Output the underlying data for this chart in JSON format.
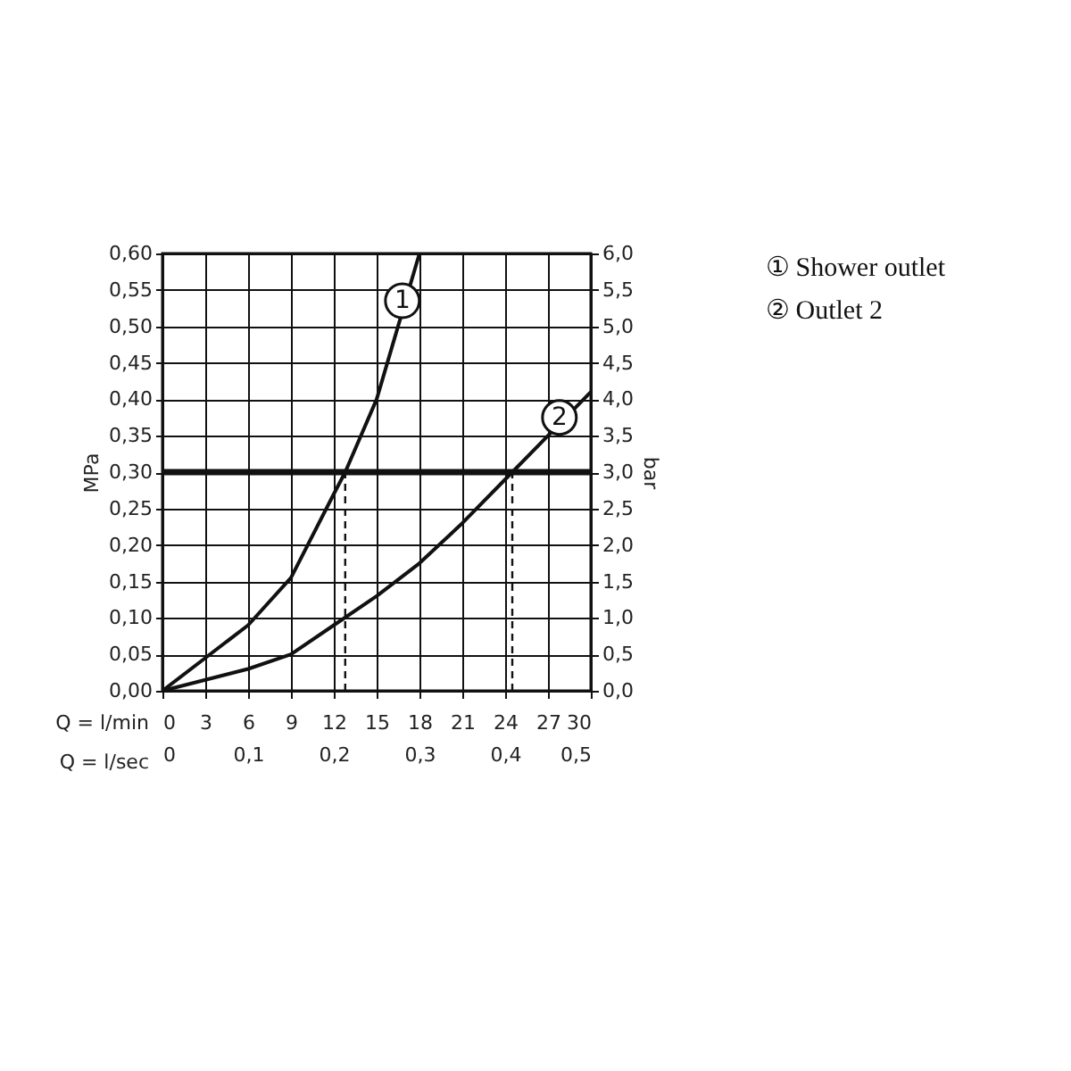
{
  "chart_data": {
    "type": "line",
    "xlabel": "Q = l/min",
    "x2label": "Q = l/sec",
    "ylabel": "MPa",
    "y2label": "bar",
    "xlim": [
      0,
      30
    ],
    "xticks": [
      0,
      3,
      6,
      9,
      12,
      15,
      18,
      21,
      24,
      27,
      30
    ],
    "x2lim": [
      0,
      0.5
    ],
    "x2ticks": [
      0,
      {
        "value": 0.1,
        "label": "0,1"
      },
      {
        "value": 0.2,
        "label": "0,2"
      },
      {
        "value": 0.3,
        "label": "0,3"
      },
      {
        "value": 0.4,
        "label": "0,4"
      },
      {
        "value": 0.5,
        "label": "0,5"
      }
    ],
    "ylim": [
      0,
      0.6
    ],
    "yticks": [
      {
        "value": 0,
        "label": "0,00"
      },
      {
        "value": 0.05,
        "label": "0,05"
      },
      {
        "value": 0.1,
        "label": "0,10"
      },
      {
        "value": 0.15,
        "label": "0,15"
      },
      {
        "value": 0.2,
        "label": "0,20"
      },
      {
        "value": 0.25,
        "label": "0,25"
      },
      {
        "value": 0.3,
        "label": "0,30"
      },
      {
        "value": 0.35,
        "label": "0,35"
      },
      {
        "value": 0.4,
        "label": "0,40"
      },
      {
        "value": 0.45,
        "label": "0,45"
      },
      {
        "value": 0.5,
        "label": "0,50"
      },
      {
        "value": 0.55,
        "label": "0,55"
      },
      {
        "value": 0.6,
        "label": "0,60"
      }
    ],
    "y2lim": [
      0,
      6
    ],
    "y2ticks": [
      {
        "value": 0,
        "label": "0,0"
      },
      {
        "value": 0.5,
        "label": "0,5"
      },
      {
        "value": 1,
        "label": "1,0"
      },
      {
        "value": 1.5,
        "label": "1,5"
      },
      {
        "value": 2,
        "label": "2,0"
      },
      {
        "value": 2.5,
        "label": "2,5"
      },
      {
        "value": 3,
        "label": "3,0"
      },
      {
        "value": 3.5,
        "label": "3,5"
      },
      {
        "value": 4,
        "label": "4,0"
      },
      {
        "value": 4.5,
        "label": "4,5"
      },
      {
        "value": 5,
        "label": "5,0"
      },
      {
        "value": 5.5,
        "label": "5,5"
      },
      {
        "value": 6,
        "label": "6,0"
      }
    ],
    "grid": true,
    "legend": "right",
    "series": [
      {
        "name": "① Shower outlet",
        "color": "#111111",
        "x": [
          0,
          3,
          6,
          9,
          12,
          12.8,
          15,
          16.5,
          18
        ],
        "values": [
          0,
          0.045,
          0.09,
          0.155,
          0.27,
          0.3,
          0.4,
          0.5,
          0.6
        ]
      },
      {
        "name": "② Outlet 2",
        "color": "#111111",
        "x": [
          0,
          3,
          6,
          9,
          12,
          15,
          18,
          21,
          24.5,
          27,
          30
        ],
        "values": [
          0,
          0.015,
          0.03,
          0.05,
          0.09,
          0.13,
          0.175,
          0.23,
          0.3,
          0.35,
          0.41
        ]
      },
      {
        "color": "#111111",
        "line_style": "dashed",
        "x": [
          12.8,
          12.8
        ],
        "values": [
          0,
          0.3
        ]
      },
      {
        "color": "#111111",
        "line_style": "dashed",
        "x": [
          24.5,
          24.5
        ],
        "values": [
          0,
          0.3
        ]
      }
    ],
    "ref_lines": [
      {
        "axis": "y2",
        "value": 3,
        "color": "#111111"
      }
    ],
    "annotations": [
      {
        "text": "1",
        "x": 16.8,
        "y": 0.535
      },
      {
        "text": "2",
        "x": 27.8,
        "y": 0.375
      }
    ]
  }
}
